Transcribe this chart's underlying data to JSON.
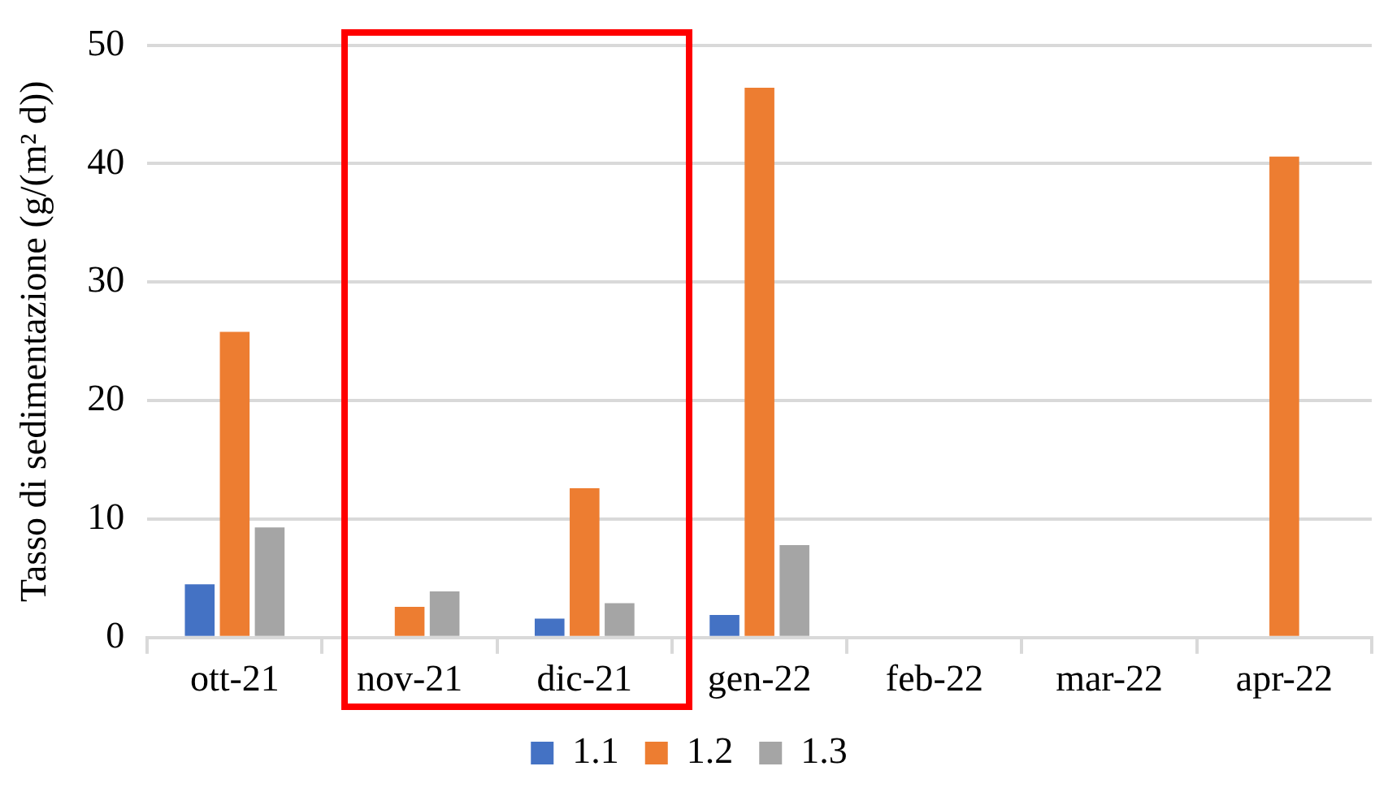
{
  "chart_data": {
    "type": "bar",
    "ylabel": "Tasso di sedimentazione (g/(m² d))",
    "categories": [
      "ott-21",
      "nov-21",
      "dic-21",
      "gen-22",
      "feb-22",
      "mar-22",
      "apr-22"
    ],
    "series": [
      {
        "name": "1.1",
        "color": "#4472c4",
        "values": [
          4.5,
          null,
          1.6,
          1.9,
          null,
          null,
          null
        ]
      },
      {
        "name": "1.2",
        "color": "#ed7d31",
        "values": [
          25.8,
          2.6,
          12.6,
          46.4,
          null,
          null,
          40.6
        ]
      },
      {
        "name": "1.3",
        "color": "#a5a5a5",
        "values": [
          9.3,
          3.9,
          2.9,
          7.8,
          null,
          null,
          null
        ]
      }
    ],
    "ylim": [
      0,
      50
    ],
    "yticks": [
      0,
      10,
      20,
      30,
      40,
      50
    ],
    "grid": "y",
    "legend": "bottom"
  }
}
